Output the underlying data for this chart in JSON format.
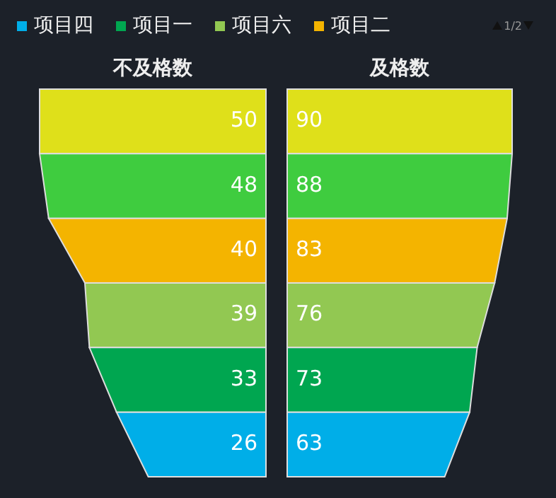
{
  "chart_data": {
    "type": "other",
    "categories": [
      "不及格数",
      "及格数"
    ],
    "series": [
      {
        "color": "#dfe01a",
        "values": [
          50,
          90
        ]
      },
      {
        "color": "#3fcc3f",
        "values": [
          48,
          88
        ]
      },
      {
        "name": "项目二",
        "color": "#f4b400",
        "values": [
          40,
          83
        ]
      },
      {
        "name": "项目六",
        "color": "#92c852",
        "values": [
          39,
          76
        ]
      },
      {
        "name": "项目一",
        "color": "#00a650",
        "values": [
          33,
          73
        ]
      },
      {
        "name": "项目四",
        "color": "#00aee8",
        "values": [
          26,
          63
        ]
      }
    ],
    "legend": "top",
    "data_labels": true,
    "annotations": [
      "1/2"
    ]
  }
}
